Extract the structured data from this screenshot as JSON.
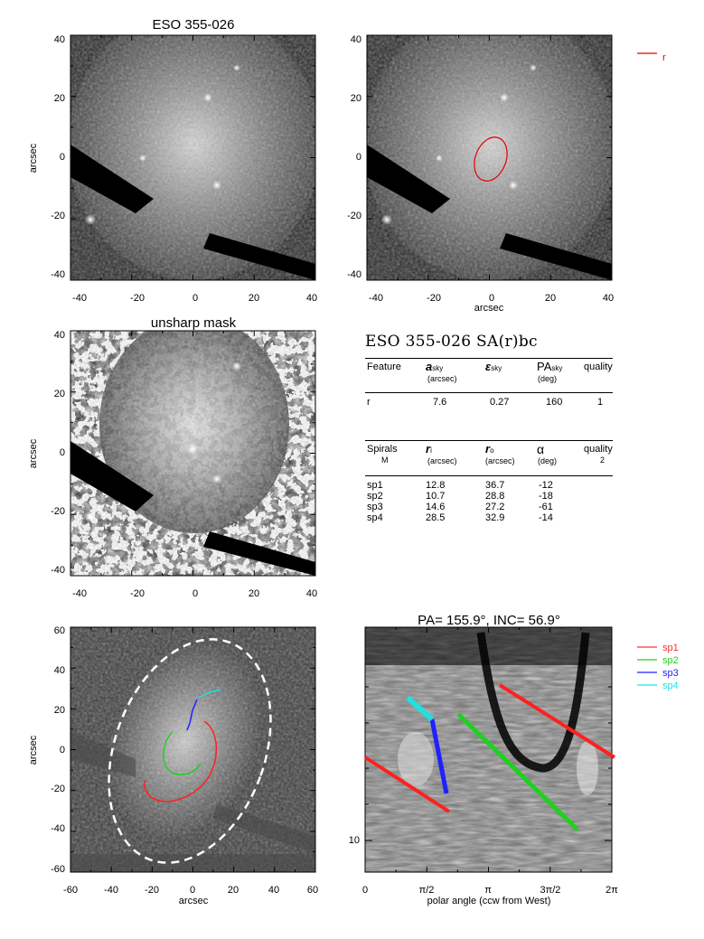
{
  "panels": {
    "p1_title": "ESO 355-026",
    "p3_title": "unsharp mask",
    "p6_title": "PA= 155.9°, INC=  56.9°",
    "ylabel": "arcsec",
    "xlabel": "arcsec",
    "p6_xlabel": "polar angle (ccw from West)",
    "ticks40": [
      "-40",
      "-20",
      "0",
      "20",
      "40"
    ],
    "ticks60": [
      "-60",
      "-40",
      "-20",
      "0",
      "20",
      "40",
      "60"
    ],
    "polar_ticks": [
      "0",
      "π/2",
      "π",
      "3π/2",
      "2π"
    ],
    "p6_ytick": "10"
  },
  "legend_top": {
    "label": "r",
    "color": "#e00000"
  },
  "legend_bottom": [
    {
      "label": "sp1",
      "color": "#ff3030"
    },
    {
      "label": "sp2",
      "color": "#20d020"
    },
    {
      "label": "sp3",
      "color": "#2020ff"
    },
    {
      "label": "sp4",
      "color": "#20e0e0"
    }
  ],
  "table": {
    "title": "ESO 355-026  SA(r)bc",
    "features_header": {
      "feature": "Feature",
      "a": "a",
      "a_sub": "sky",
      "a_unit": "(arcsec)",
      "e": "ε",
      "e_sub": "sky",
      "pa": "PA",
      "pa_sub": "sky",
      "pa_unit": "(deg)",
      "quality": "quality"
    },
    "features": [
      {
        "name": "r",
        "a": "7.6",
        "e": "0.27",
        "pa": "160",
        "quality": "1"
      }
    ],
    "spirals_header": {
      "spirals": "Spirals",
      "m": "M",
      "ri": "r",
      "ri_sub": "i",
      "ri_unit": "(arcsec)",
      "ro": "r",
      "ro_sub": "o",
      "ro_unit": "(arcsec)",
      "alpha": "α",
      "alpha_unit": "(deg)",
      "quality": "quality",
      "quality_val": "2"
    },
    "spirals": [
      {
        "name": "sp1",
        "ri": "12.8",
        "ro": "36.7",
        "alpha": "-12"
      },
      {
        "name": "sp2",
        "ri": "10.7",
        "ro": "28.8",
        "alpha": "-18"
      },
      {
        "name": "sp3",
        "ri": "14.6",
        "ro": "27.2",
        "alpha": "-61"
      },
      {
        "name": "sp4",
        "ri": "28.5",
        "ro": "32.9",
        "alpha": "-14"
      }
    ]
  }
}
